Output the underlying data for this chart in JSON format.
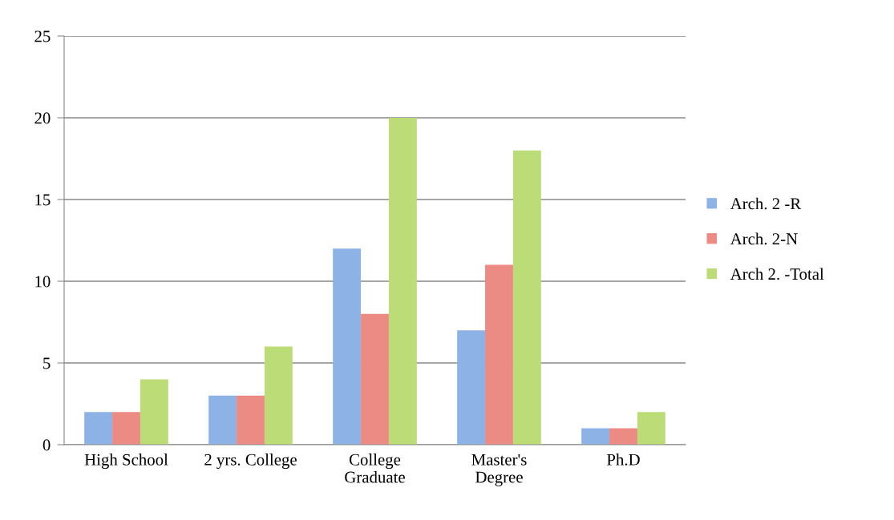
{
  "chart_data": {
    "type": "bar",
    "categories": [
      "High School",
      "2 yrs. College",
      "College\nGraduate",
      "Master's\nDegree",
      "Ph.D"
    ],
    "series": [
      {
        "name": "Arch. 2 -R",
        "color": "#8db3e6",
        "values": [
          2,
          3,
          12,
          7,
          1
        ]
      },
      {
        "name": "Arch. 2-N",
        "color": "#ec8a84",
        "values": [
          2,
          3,
          8,
          11,
          1
        ]
      },
      {
        "name": "Arch 2. -Total",
        "color": "#bcdc78",
        "values": [
          4,
          6,
          20,
          18,
          2
        ]
      }
    ],
    "ylim": [
      0,
      25
    ],
    "yticks": [
      0,
      5,
      10,
      15,
      20,
      25
    ],
    "grid": "y",
    "legend": "right"
  }
}
